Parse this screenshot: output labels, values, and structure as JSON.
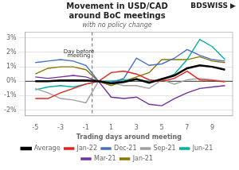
{
  "chart_data": {
    "type": "line",
    "title": [
      "Movement in USD/CAD",
      "around BoC meetings"
    ],
    "subtitle": "with no policy change",
    "x_label": "Trading days around meeting",
    "x": [
      -5,
      -4,
      -3,
      -2,
      -1,
      0,
      1,
      2,
      3,
      4,
      5,
      6,
      7,
      8,
      9,
      10
    ],
    "series": [
      {
        "name": "Jan-22",
        "color": "#e2231a",
        "values": [
          -1.2,
          -1.2,
          -0.8,
          -0.5,
          -0.2,
          0.0,
          0.6,
          0.7,
          0.5,
          0.1,
          0.0,
          0.2,
          0.7,
          0.1,
          0.05,
          -0.05
        ]
      },
      {
        "name": "Dec-21",
        "color": "#4472c4",
        "values": [
          1.3,
          1.4,
          1.5,
          1.4,
          1.1,
          0.0,
          -0.1,
          0.2,
          1.6,
          1.1,
          1.2,
          1.6,
          2.2,
          1.8,
          1.5,
          1.4
        ]
      },
      {
        "name": "Sep-21",
        "color": "#a0a0a0",
        "values": [
          -0.5,
          -0.8,
          -1.2,
          -1.3,
          -1.5,
          0.0,
          -0.1,
          -0.3,
          -0.3,
          -0.5,
          0.1,
          -0.2,
          0.1,
          0.2,
          0.1,
          0.0
        ]
      },
      {
        "name": "Jun-21",
        "color": "#00b0a0",
        "values": [
          -0.6,
          -0.4,
          -0.3,
          -0.4,
          -0.2,
          0.0,
          0.0,
          0.1,
          0.1,
          0.0,
          0.05,
          0.5,
          1.5,
          2.9,
          2.4,
          1.5
        ]
      },
      {
        "name": "Mar-21",
        "color": "#7030a0",
        "values": [
          0.3,
          0.2,
          0.3,
          0.4,
          0.3,
          0.0,
          -1.1,
          -1.2,
          -1.1,
          -1.6,
          -1.7,
          -1.2,
          -0.8,
          -0.5,
          -0.4,
          -0.3
        ]
      },
      {
        "name": "Jan-21",
        "color": "#8b7500",
        "values": [
          0.5,
          0.9,
          1.0,
          1.0,
          0.8,
          0.0,
          -0.3,
          0.0,
          0.3,
          0.6,
          1.5,
          1.5,
          1.5,
          1.7,
          1.4,
          1.3
        ]
      },
      {
        "name": "Average",
        "color": "#000000",
        "values": [
          0.0,
          0.0,
          0.05,
          0.05,
          0.05,
          0.0,
          -0.15,
          -0.05,
          0.15,
          -0.1,
          0.15,
          0.4,
          0.9,
          1.1,
          1.0,
          0.8
        ]
      }
    ],
    "xlim": [
      -5.8,
      10.6
    ],
    "xticks": [
      -5,
      -3,
      -1,
      1,
      3,
      5,
      7,
      9
    ],
    "ylim": [
      -2.4,
      3.4
    ],
    "yticks": [
      {
        "value": -2,
        "label": "-2%"
      },
      {
        "value": -1,
        "label": "-1%"
      },
      {
        "value": 0,
        "label": "0%"
      },
      {
        "value": 1,
        "label": "1%"
      },
      {
        "value": 2,
        "label": "2%"
      },
      {
        "value": 3,
        "label": "3%"
      }
    ],
    "grid": "y",
    "legend": "bottom",
    "vlines": [
      {
        "x": -0.5,
        "line_style": "dashed"
      }
    ],
    "hlines": [
      {
        "y": 0
      }
    ],
    "annotations": [
      {
        "text": "Day before",
        "x": -1.55,
        "y": 1.85
      },
      {
        "text": "meeting",
        "x": -1.55,
        "y": 1.55
      },
      {
        "text": "BDSWISS ▶"
      }
    ]
  }
}
